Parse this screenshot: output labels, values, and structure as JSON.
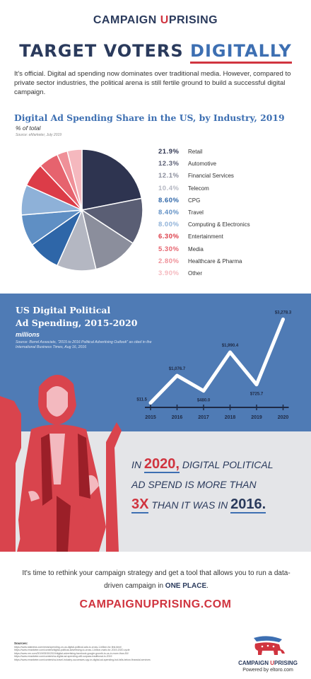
{
  "brand": {
    "part1": "CAMPAIGN ",
    "part2": "U",
    "part3": "PRISING"
  },
  "headline": {
    "plain": "TARGET VOTERS ",
    "highlight": "DIGITALLY"
  },
  "intro": "It's official. Digital ad spending now dominates over traditional media. However, compared to private sector industries, the political arena is still fertile ground to build a successful digital campaign.",
  "pie_section": {
    "title": "Digital Ad Spending Share in the US, by Industry, 2019",
    "subtitle": "% of total",
    "source": "Source: eMarketer, July 2019"
  },
  "political_section": {
    "title_line1": "US Digital Political",
    "title_line2": "Ad Spending, 2015-2020",
    "units": "millions",
    "source": "Source: Borrel Associats, \"2015 to 2016 Political Advertising Outlook\" as cited in the International Business Times, Aug 16, 2016"
  },
  "chart_data": [
    {
      "type": "pie",
      "title": "Digital Ad Spending Share in the US, by Industry, 2019",
      "subtitle": "% of total",
      "categories": [
        "Retail",
        "Automotive",
        "Financial Services",
        "Telecom",
        "CPG",
        "Travel",
        "Computing & Electronics",
        "Entertainment",
        "Media",
        "Healthcare & Pharma",
        "Other"
      ],
      "labels": [
        "21.9%",
        "12.3%",
        "12.1%",
        "10.4%",
        "8.60%",
        "8.40%",
        "8.00%",
        "6.30%",
        "5.30%",
        "2.80%",
        "3.90%"
      ],
      "values": [
        21.9,
        12.3,
        12.1,
        10.4,
        8.6,
        8.4,
        8.0,
        6.3,
        5.3,
        2.8,
        3.9
      ],
      "colors": [
        "#2e3450",
        "#5a5e74",
        "#8b8e9c",
        "#b4b7c2",
        "#2e66a8",
        "#5f8fc4",
        "#8eb1d8",
        "#dc3c48",
        "#e6636e",
        "#ef9098",
        "#f5b8be"
      ],
      "legend": "right"
    },
    {
      "type": "line",
      "title": "US Digital Political Ad Spending, 2015-2020",
      "ylabel": "millions",
      "x": [
        "2015",
        "2016",
        "2017",
        "2018",
        "2019",
        "2020"
      ],
      "values": [
        11.5,
        1076.7,
        480.0,
        1990.4,
        725.7,
        3278.3
      ],
      "value_labels": [
        "$11.5",
        "$1,076.7",
        "$480.0",
        "$1,990.4",
        "$725.7",
        "$3,278.3"
      ],
      "ylim": [
        0,
        3400
      ],
      "grid": false,
      "line_color": "#ffffff"
    }
  ],
  "claim": {
    "in": "IN ",
    "year2020": "2020,",
    "rest1": " DIGITAL POLITICAL",
    "line2": "AD SPEND IS MORE THAN",
    "mult": "3X",
    "rest3": " THAN IT WAS IN ",
    "year2016": "2016."
  },
  "closing": {
    "text": "It's time to rethink your campaign strategy and get a tool that allows you to run a data-driven campaign in ",
    "bold": "ONE PLACE",
    "end": "."
  },
  "website": "CAMPAIGNUPRISING.COM",
  "sources": {
    "header": "Sources:",
    "items": [
      "https://www.statnews.com/news/spending-on-us-digital-political-ads-to-cross-1-billion-for-first-time/",
      "https://www.emarketer.com/content/digital-political-advertising-to-cross-1-billion-mark-for-2019-2020-cycle",
      "https://www.nrn.com/2019/05/30/2019/digital-advertising-facebook-google-growth-to-us-in-more-than-50/",
      "https://www.emarketer.com/content/us-digital-ad-spending-will-surpass-traditional-in-2019",
      "https://www.emarketer.com/content/us-travel-industry-successes-spy-in-digital-ad-spending-but-falls-below-financial-services"
    ]
  },
  "footer": {
    "brand1": "CAMPAIGN ",
    "brand2": "U",
    "brand3": "PRISING",
    "powered": "Powered by eltoro.com"
  },
  "colors": {
    "navy": "#2a3a5c",
    "blue": "#3d6fb2",
    "red": "#d0343f",
    "band_blue": "#4f7bb5",
    "band_gray": "#e4e5e8"
  }
}
